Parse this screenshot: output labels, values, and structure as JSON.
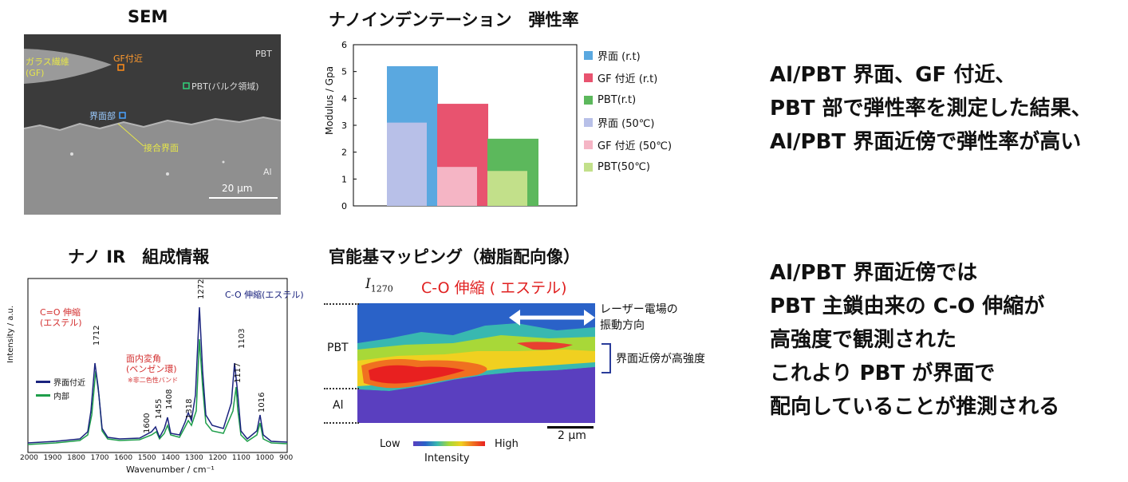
{
  "sem": {
    "title": "SEM",
    "labels": {
      "glass_fiber": "ガラス繊維\n(GF)",
      "gf_near": "GF付近",
      "pbt_bulk": "PBT(バルク領域)",
      "pbt": "PBT",
      "interface": "界面部",
      "bond_interface": "接合界面",
      "al": "Al",
      "scale": "20 μm"
    }
  },
  "nano": {
    "title": "ナノインデンテーション　弾性率"
  },
  "chart_data": {
    "type": "bar",
    "ylabel": "Modulus / Gpa",
    "ylim": [
      0,
      6
    ],
    "yticks": [
      0,
      1,
      2,
      3,
      4,
      5,
      6
    ],
    "series": [
      {
        "name": "界面 (r.t)",
        "values": [
          5.2
        ],
        "color": "#5aa8e0"
      },
      {
        "name": "GF 付近 (r.t)",
        "values": [
          3.8
        ],
        "color": "#e8536f"
      },
      {
        "name": "PBT(r.t)",
        "values": [
          2.5
        ],
        "color": "#5cb85c"
      },
      {
        "name": "界面 (50℃)",
        "values": [
          3.1
        ],
        "color": "#b8c0e8"
      },
      {
        "name": "GF 付近 (50℃)",
        "values": [
          1.45
        ],
        "color": "#f5b5c5"
      },
      {
        "name": "PBT(50℃)",
        "values": [
          1.3
        ],
        "color": "#c2e08a"
      }
    ]
  },
  "ir": {
    "title": "ナノ IR　組成情報",
    "ylabel": "Intensity / a.u.",
    "xlabel": "Wavenumber / cm⁻¹",
    "xticks": [
      "2000",
      "1900",
      "1800",
      "1700",
      "1600",
      "1500",
      "1400",
      "1300",
      "1200",
      "1100",
      "1000",
      "900"
    ],
    "peaks": [
      "1712",
      "1600",
      "1455",
      "1408",
      "1318",
      "1272",
      "1117",
      "1103",
      "1016"
    ],
    "ann_co_ester_red": "C=O 伸縮\n(エステル)",
    "ann_co_stretch": "C-O 伸縮(エステル)",
    "ann_inplane": "面内変角\n(ベンゼン環)",
    "ann_note": "※非二色性バンド",
    "legend_interface": "界面付近",
    "legend_inner": "内部",
    "colors": {
      "interface": "#1a237e",
      "inner": "#1e9e4a"
    }
  },
  "mapping": {
    "title": "官能基マッピング（樹脂配向像）",
    "i_label": "I",
    "i_sub": "1270",
    "heading": "C-O 伸縮 ( エステル)",
    "laser": "レーザー電場の\n振動方向",
    "high_near": "界面近傍が高強度",
    "pbt": "PBT",
    "al": "Al",
    "scale": "2 μm",
    "low": "Low",
    "high": "High",
    "intensity": "Intensity"
  },
  "text_blocks": {
    "top": [
      "Al/PBT 界面、GF 付近、",
      "PBT 部で弾性率を測定した結果、",
      "Al/PBT 界面近傍で弾性率が高い"
    ],
    "bottom": [
      "Al/PBT 界面近傍では",
      "PBT 主鎖由来の C-O 伸縮が",
      "高強度で観測された",
      "これより PBT が界面で",
      "配向していることが推測される"
    ]
  }
}
